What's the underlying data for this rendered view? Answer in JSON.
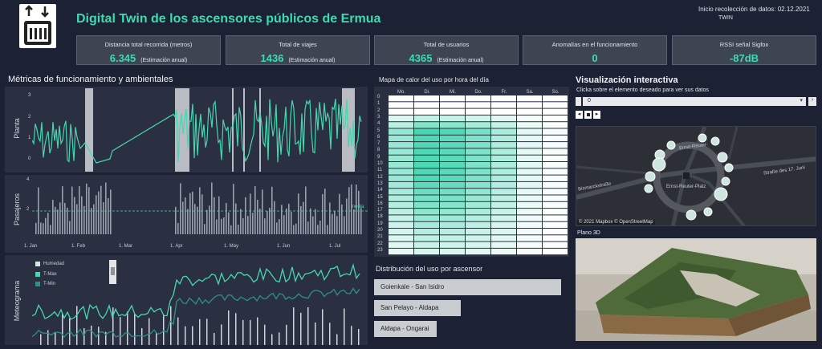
{
  "header": {
    "title": "Digital Twin de los ascensores públicos de Ermua",
    "collection_start": "Inicio recolección de datos: 02.12.2021",
    "twin_label": "TWIN"
  },
  "kpis": [
    {
      "label": "Distancia total recorrida  (metros)",
      "value": "6.345",
      "sub": "(Estimación anual)"
    },
    {
      "label": "Total de viajes",
      "value": "1436",
      "sub": "(Estimación anual)"
    },
    {
      "label": "Total de usuarios",
      "value": "4365",
      "sub": "(Estimación anual)"
    },
    {
      "label": "Anomalías en el funcionamiento",
      "value": "0",
      "sub": ""
    },
    {
      "label": "RSSI señal Sigfox",
      "value": "-87dB",
      "sub": ""
    }
  ],
  "metrics": {
    "title": "Métricas de funcionamiento y ambientales",
    "planta_label": "Planta",
    "pasajeros_label": "Pasajeros",
    "meteo_label": "Meteograma",
    "media_label": "media",
    "y_ticks_planta": [
      "3",
      "2",
      "1",
      "0"
    ],
    "y_ticks_pasajeros": [
      "4",
      "2"
    ],
    "x_ticks": [
      "1. Jan",
      "1. Feb",
      "1. Mar",
      "1. Apr",
      "1. May",
      "1. Jun",
      "1. Jul"
    ],
    "legend": [
      "Humedad",
      "T-Max",
      "T-Min"
    ],
    "colors": {
      "line": "#45d8b0",
      "meteo2": "#2f8f88",
      "bar": "#9aa0ab",
      "highlight": "#b9bcc2"
    }
  },
  "heatmap": {
    "title": "Mapa de calor del uso por hora del día",
    "days": [
      "Mo.",
      "Di.",
      "Mi.",
      "Do.",
      "Fr.",
      "Sa.",
      "So."
    ],
    "hours": [
      "0",
      "1",
      "2",
      "3",
      "4",
      "5",
      "6",
      "7",
      "8",
      "9",
      "10",
      "11",
      "12",
      "13",
      "14",
      "15",
      "16",
      "17",
      "18",
      "19",
      "20",
      "21",
      "22",
      "23"
    ]
  },
  "distribution": {
    "title": "Distribución del uso por ascensor",
    "items": [
      "Goienkale - San Isidro",
      "San Pelayo - Aldapa",
      "Aldapa - Ongarai"
    ]
  },
  "interactive": {
    "title": "Visualización interactiva",
    "hint": "Clicka sobre el elemento deseado para ver sus datos",
    "select_value": "0",
    "map_labels": [
      "Ernst-Reuter-",
      "Bismarckstraße",
      "Straße des 17. Juni",
      "Ernst-Reuter-Platz"
    ],
    "attribution": "© 2021 Mapbox © OpenStreetMap",
    "plano_label": "Plano 3D"
  }
}
